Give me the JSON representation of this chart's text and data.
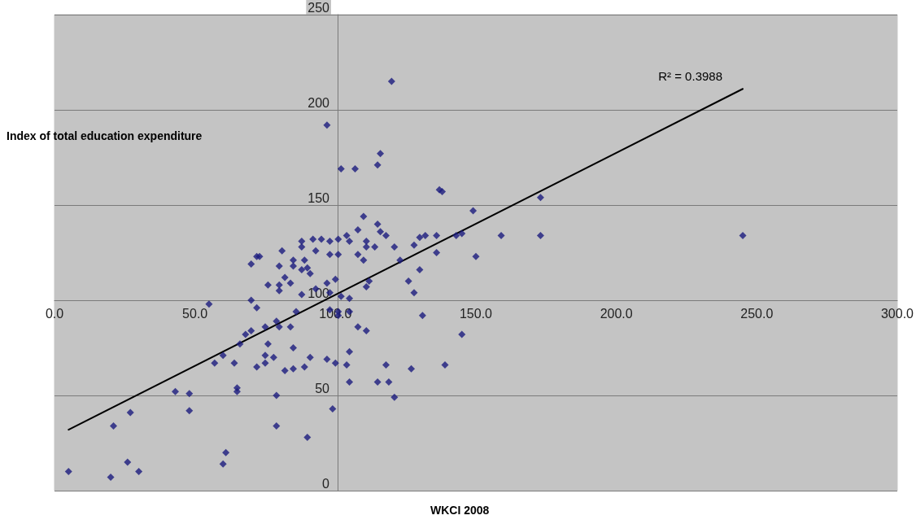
{
  "chart_data": {
    "type": "scatter",
    "xlabel": "WKCI 2008",
    "ylabel": "Index of total education expenditure",
    "xlim": [
      0,
      300
    ],
    "ylim": [
      0,
      250
    ],
    "xticks": [
      {
        "value": 0,
        "label": "0.0"
      },
      {
        "value": 50,
        "label": "50.0"
      },
      {
        "value": 100,
        "label": "100.0"
      },
      {
        "value": 150,
        "label": "150.0"
      },
      {
        "value": 200,
        "label": "200.0"
      },
      {
        "value": 250,
        "label": "250.0"
      },
      {
        "value": 300,
        "label": "300.0"
      }
    ],
    "yticks": [
      0,
      50,
      100,
      150,
      200,
      250
    ],
    "grid": "y",
    "annotations": [
      "R² = 0.3988"
    ],
    "series": [
      {
        "color": "#1c1c7e",
        "marker": "diamond",
        "x": [
          5,
          20,
          21,
          26,
          27,
          30,
          43,
          48,
          48,
          55,
          57,
          60,
          60,
          61,
          64,
          65,
          65,
          66,
          68,
          70,
          70,
          72,
          72,
          75,
          75,
          75,
          76,
          78,
          79,
          79,
          79,
          80,
          82,
          84,
          85,
          85,
          76,
          80,
          80,
          82,
          84,
          97,
          102,
          107,
          116,
          115,
          137,
          138,
          110,
          115,
          108,
          104,
          105,
          116,
          118,
          111,
          111,
          114,
          121,
          108,
          110,
          101,
          98,
          98,
          101,
          95,
          92,
          88,
          88,
          93,
          81,
          89,
          85,
          80,
          85,
          88,
          90,
          91,
          70,
          72,
          73,
          97,
          100,
          93,
          98,
          102,
          105,
          88,
          86,
          98,
          101,
          101,
          105,
          128,
          130,
          132,
          136,
          136,
          130,
          123,
          126,
          128,
          111,
          112,
          131,
          120,
          149,
          173,
          173,
          159,
          150,
          143,
          145,
          108,
          111,
          145,
          118,
          127,
          139,
          115,
          119,
          121,
          89,
          91,
          97,
          100,
          104,
          105,
          105,
          99,
          90,
          245
        ],
        "values": [
          10,
          7,
          34,
          15,
          41,
          10,
          52,
          51,
          42,
          98,
          67,
          71,
          14,
          20,
          67,
          54,
          52,
          77,
          82,
          84,
          100,
          96,
          65,
          67,
          71,
          86,
          77,
          70,
          34,
          50,
          89,
          86,
          63,
          86,
          64,
          75,
          108,
          108,
          105,
          112,
          109,
          192,
          169,
          169,
          177,
          171,
          158,
          157,
          144,
          140,
          137,
          134,
          131,
          136,
          134,
          131,
          128,
          128,
          128,
          124,
          121,
          132,
          131,
          124,
          124,
          132,
          132,
          131,
          128,
          126,
          126,
          121,
          121,
          118,
          118,
          116,
          117,
          114,
          119,
          123,
          123,
          109,
          111,
          106,
          104,
          102,
          101,
          103,
          94,
          95,
          94,
          92,
          94,
          129,
          133,
          134,
          134,
          125,
          116,
          121,
          110,
          104,
          107,
          110,
          92,
          215,
          147,
          154,
          134,
          134,
          123,
          134,
          135,
          86,
          84,
          82,
          66,
          64,
          66,
          57,
          57,
          49,
          65,
          70,
          69,
          67,
          66,
          73,
          57,
          43,
          28,
          134
        ]
      },
      {
        "type": "line",
        "color": "#000000",
        "marker": "none",
        "line_style": "solid",
        "x": [
          5,
          245
        ],
        "values": [
          32,
          211
        ]
      }
    ]
  }
}
